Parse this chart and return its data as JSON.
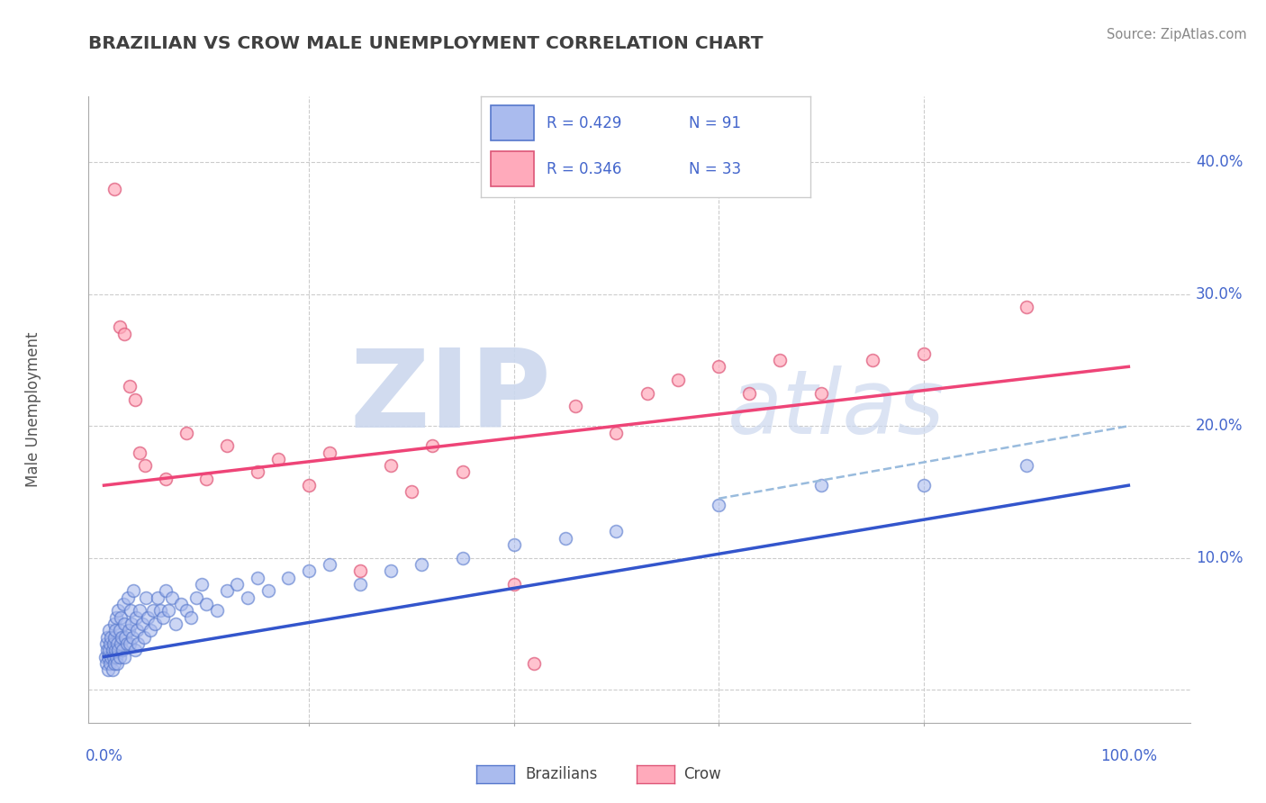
{
  "title": "BRAZILIAN VS CROW MALE UNEMPLOYMENT CORRELATION CHART",
  "source": "Source: ZipAtlas.com",
  "ylabel": "Male Unemployment",
  "x_ticks": [
    0.0,
    0.2,
    0.4,
    0.6,
    0.8,
    1.0
  ],
  "y_ticks": [
    0.0,
    0.1,
    0.2,
    0.3,
    0.4
  ],
  "y_tick_labels": [
    "",
    "10.0%",
    "20.0%",
    "30.0%",
    "40.0%"
  ],
  "xlim": [
    -0.015,
    1.06
  ],
  "ylim": [
    -0.025,
    0.45
  ],
  "grid_color": "#cccccc",
  "background_color": "#ffffff",
  "title_color": "#404040",
  "axis_color": "#4466cc",
  "blue_color": "#aabbee",
  "blue_edge_color": "#5577cc",
  "pink_color": "#ffaabb",
  "pink_edge_color": "#dd5577",
  "blue_line_color": "#3355cc",
  "pink_line_color": "#ee4477",
  "dashed_line_color": "#99bbdd",
  "watermark_color": "#ccd8ee",
  "legend_r1": "R = 0.429",
  "legend_n1": "N = 91",
  "legend_r2": "R = 0.346",
  "legend_n2": "N = 33",
  "brazilian_scatter_x": [
    0.001,
    0.002,
    0.002,
    0.003,
    0.003,
    0.004,
    0.004,
    0.005,
    0.005,
    0.006,
    0.006,
    0.007,
    0.007,
    0.008,
    0.008,
    0.009,
    0.009,
    0.01,
    0.01,
    0.01,
    0.011,
    0.011,
    0.012,
    0.012,
    0.013,
    0.013,
    0.014,
    0.014,
    0.015,
    0.015,
    0.016,
    0.016,
    0.017,
    0.018,
    0.019,
    0.02,
    0.02,
    0.021,
    0.022,
    0.023,
    0.024,
    0.025,
    0.026,
    0.027,
    0.028,
    0.029,
    0.03,
    0.031,
    0.032,
    0.033,
    0.035,
    0.037,
    0.039,
    0.041,
    0.043,
    0.045,
    0.048,
    0.05,
    0.052,
    0.055,
    0.058,
    0.06,
    0.063,
    0.066,
    0.07,
    0.075,
    0.08,
    0.085,
    0.09,
    0.095,
    0.1,
    0.11,
    0.12,
    0.13,
    0.14,
    0.15,
    0.16,
    0.18,
    0.2,
    0.22,
    0.25,
    0.28,
    0.31,
    0.35,
    0.4,
    0.45,
    0.5,
    0.6,
    0.7,
    0.8,
    0.9
  ],
  "brazilian_scatter_y": [
    0.025,
    0.02,
    0.035,
    0.03,
    0.04,
    0.025,
    0.015,
    0.03,
    0.045,
    0.02,
    0.035,
    0.025,
    0.04,
    0.03,
    0.015,
    0.035,
    0.025,
    0.02,
    0.04,
    0.05,
    0.03,
    0.045,
    0.025,
    0.055,
    0.035,
    0.02,
    0.06,
    0.03,
    0.045,
    0.025,
    0.035,
    0.055,
    0.04,
    0.03,
    0.065,
    0.025,
    0.05,
    0.04,
    0.035,
    0.07,
    0.045,
    0.035,
    0.06,
    0.05,
    0.04,
    0.075,
    0.03,
    0.055,
    0.045,
    0.035,
    0.06,
    0.05,
    0.04,
    0.07,
    0.055,
    0.045,
    0.06,
    0.05,
    0.07,
    0.06,
    0.055,
    0.075,
    0.06,
    0.07,
    0.05,
    0.065,
    0.06,
    0.055,
    0.07,
    0.08,
    0.065,
    0.06,
    0.075,
    0.08,
    0.07,
    0.085,
    0.075,
    0.085,
    0.09,
    0.095,
    0.08,
    0.09,
    0.095,
    0.1,
    0.11,
    0.115,
    0.12,
    0.14,
    0.155,
    0.155,
    0.17
  ],
  "crow_scatter_x": [
    0.01,
    0.015,
    0.02,
    0.025,
    0.03,
    0.035,
    0.04,
    0.06,
    0.08,
    0.1,
    0.12,
    0.15,
    0.17,
    0.2,
    0.22,
    0.25,
    0.28,
    0.3,
    0.32,
    0.35,
    0.4,
    0.42,
    0.46,
    0.5,
    0.53,
    0.56,
    0.6,
    0.63,
    0.66,
    0.7,
    0.75,
    0.8,
    0.9
  ],
  "crow_scatter_y": [
    0.38,
    0.275,
    0.27,
    0.23,
    0.22,
    0.18,
    0.17,
    0.16,
    0.195,
    0.16,
    0.185,
    0.165,
    0.175,
    0.155,
    0.18,
    0.09,
    0.17,
    0.15,
    0.185,
    0.165,
    0.08,
    0.02,
    0.215,
    0.195,
    0.225,
    0.235,
    0.245,
    0.225,
    0.25,
    0.225,
    0.25,
    0.255,
    0.29
  ],
  "blue_trend_x": [
    0.0,
    1.0
  ],
  "blue_trend_y": [
    0.025,
    0.155
  ],
  "pink_trend_x": [
    0.0,
    1.0
  ],
  "pink_trend_y": [
    0.155,
    0.245
  ],
  "dashed_trend_x": [
    0.6,
    1.0
  ],
  "dashed_trend_y": [
    0.145,
    0.2
  ]
}
